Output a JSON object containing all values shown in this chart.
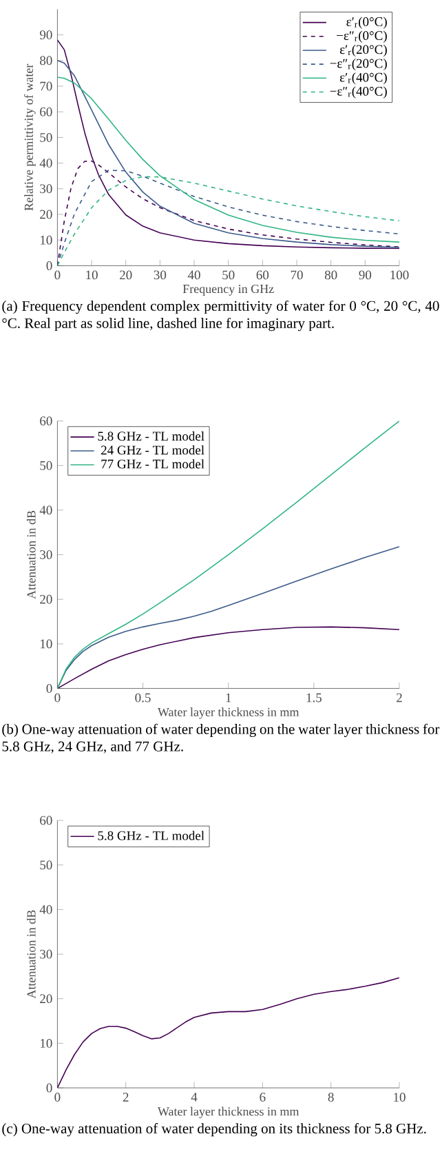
{
  "chart_data": [
    {
      "type": "line",
      "xlabel": "Frequency in GHz",
      "ylabel": "Relative permittivity of water",
      "xlim": [
        0,
        100
      ],
      "ylim": [
        0,
        100
      ],
      "xticks": [
        0,
        10,
        20,
        30,
        40,
        50,
        60,
        70,
        80,
        90,
        100
      ],
      "yticks": [
        0,
        10,
        20,
        30,
        40,
        50,
        60,
        70,
        80,
        90
      ],
      "legend": "top right",
      "x": [
        0,
        2,
        5,
        10,
        15,
        20,
        25,
        30,
        40,
        50,
        60,
        70,
        80,
        90,
        100
      ],
      "series": [
        {
          "name": "ε′$_{r}$(0°C)",
          "color": "#440154",
          "line_style": "solid",
          "x": [
            0,
            2,
            4,
            6,
            8,
            10,
            12,
            15,
            20,
            25,
            30,
            40,
            50,
            60,
            70,
            80,
            90,
            100
          ],
          "values": [
            88,
            84.2,
            74.4,
            62.8,
            51.8,
            42.7,
            35.5,
            27.7,
            19.8,
            15.4,
            12.8,
            10,
            8.6,
            7.8,
            7.3,
            7,
            6.8,
            6.7
          ]
        },
        {
          "name": "−ε″$_{r}$(0°C)",
          "color": "#440154",
          "line_style": "dashed",
          "x": [
            0,
            2,
            4,
            6,
            8,
            10,
            12,
            15,
            20,
            25,
            30,
            40,
            50,
            60,
            70,
            80,
            90,
            100
          ],
          "values": [
            0,
            17.4,
            30.4,
            37.9,
            40.7,
            40.8,
            39.3,
            36.2,
            30.7,
            26.1,
            22.6,
            17.6,
            14.3,
            12,
            10.4,
            9.1,
            8.1,
            7.3
          ]
        },
        {
          "name": "ε′$_{r}$(20°C)",
          "color": "#3b5a8a",
          "line_style": "solid",
          "values": [
            80,
            79,
            74,
            60.7,
            47.2,
            36.5,
            28.7,
            23.2,
            16.5,
            12.8,
            10.6,
            9.2,
            8.2,
            7.6,
            7.1
          ]
        },
        {
          "name": "−ε″$_{r}$(20°C)",
          "color": "#3b5a8a",
          "line_style": "dashed",
          "values": [
            0,
            8.7,
            20.3,
            32.8,
            37.2,
            37,
            34.9,
            32.2,
            27,
            22.9,
            19.7,
            17.2,
            15.3,
            13.7,
            12.4
          ]
        },
        {
          "name": "ε′$_{r}$(40°C)",
          "color": "#2fb582",
          "line_style": "solid",
          "values": [
            73.5,
            73.1,
            71.2,
            65.1,
            57.1,
            48.9,
            41.4,
            35.1,
            25.8,
            19.7,
            15.7,
            13,
            11.1,
            9.9,
            9.2
          ]
        },
        {
          "name": "−ε″$_{r}$(40°C)",
          "color": "#2fb582",
          "line_style": "dashed",
          "values": [
            0,
            5.1,
            12.4,
            22.6,
            29.5,
            33.2,
            34.7,
            34.6,
            32.2,
            29.1,
            26,
            23.3,
            21.1,
            19.1,
            17.5
          ]
        }
      ],
      "annotations": [
        "(a) Frequency dependent complex permittivity of water for 0 °C, 20 °C, 40 °C. Real part as solid line, dashed line for imaginary part."
      ]
    },
    {
      "type": "line",
      "xlabel": "Water layer thickness in mm",
      "ylabel": "Attenuation in dB",
      "xlim": [
        0,
        2
      ],
      "ylim": [
        0,
        60
      ],
      "xticks": [
        0,
        0.5,
        1,
        1.5,
        2
      ],
      "yticks": [
        0,
        10,
        20,
        30,
        40,
        50,
        60
      ],
      "legend": "top left",
      "series": [
        {
          "name": "5.8 GHz - TL model",
          "color": "#440154",
          "x": [
            0,
            0.1,
            0.2,
            0.3,
            0.4,
            0.5,
            0.6,
            0.8,
            1.0,
            1.2,
            1.4,
            1.6,
            1.8,
            2.0
          ],
          "values": [
            0,
            2.2,
            4.3,
            6.2,
            7.6,
            8.8,
            9.8,
            11.4,
            12.5,
            13.2,
            13.7,
            13.8,
            13.6,
            13.2
          ]
        },
        {
          "name": "24 GHz - TL model",
          "color": "#3b5a8a",
          "x": [
            0,
            0.05,
            0.1,
            0.15,
            0.2,
            0.3,
            0.4,
            0.5,
            0.6,
            0.7,
            0.8,
            0.9,
            1.0,
            1.2,
            1.4,
            1.6,
            1.8,
            2.0
          ],
          "values": [
            0,
            4,
            6.5,
            8.3,
            9.6,
            11.5,
            12.8,
            13.8,
            14.6,
            15.3,
            16.2,
            17.3,
            18.6,
            21.3,
            24.1,
            26.8,
            29.4,
            31.8
          ]
        },
        {
          "name": "77 GHz - TL model",
          "color": "#2fb582",
          "x": [
            0,
            0.05,
            0.1,
            0.15,
            0.2,
            0.3,
            0.4,
            0.5,
            0.6,
            0.8,
            1.0,
            1.2,
            1.4,
            1.6,
            1.8,
            2.0
          ],
          "values": [
            0,
            4.3,
            7,
            8.8,
            10.2,
            12.3,
            14.4,
            16.7,
            19.2,
            24.4,
            30,
            35.8,
            41.8,
            47.9,
            54,
            60
          ]
        }
      ],
      "annotations": [
        "(b) One-way attenuation of water depending on the water layer thickness for 5.8 GHz, 24 GHz, and 77 GHz."
      ]
    },
    {
      "type": "line",
      "xlabel": "Water layer thickness in mm",
      "ylabel": "Attenuation in dB",
      "xlim": [
        0,
        10
      ],
      "ylim": [
        0,
        60
      ],
      "xticks": [
        0,
        2,
        4,
        6,
        8,
        10
      ],
      "yticks": [
        0,
        10,
        20,
        30,
        40,
        50,
        60
      ],
      "legend": "top left",
      "x": [
        0,
        0.25,
        0.5,
        0.75,
        1.0,
        1.25,
        1.5,
        1.75,
        2.0,
        2.25,
        2.5,
        2.75,
        3.0,
        3.25,
        3.5,
        3.75,
        4.0,
        4.5,
        5.0,
        5.5,
        6.0,
        6.5,
        7.0,
        7.5,
        8.0,
        8.5,
        9.0,
        9.5,
        10
      ],
      "series": [
        {
          "name": "5.8 GHz - TL model",
          "color": "#440154",
          "values": [
            0,
            4,
            7.5,
            10.3,
            12.2,
            13.3,
            13.8,
            13.8,
            13.4,
            12.6,
            11.7,
            11,
            11.2,
            12.2,
            13.5,
            14.8,
            15.8,
            16.8,
            17.1,
            17.1,
            17.6,
            18.7,
            20,
            21,
            21.6,
            22.1,
            22.8,
            23.6,
            24.7
          ]
        }
      ],
      "annotations": [
        "(c) One-way attenuation of water depending on its thickness for 5.8 GHz."
      ]
    }
  ]
}
